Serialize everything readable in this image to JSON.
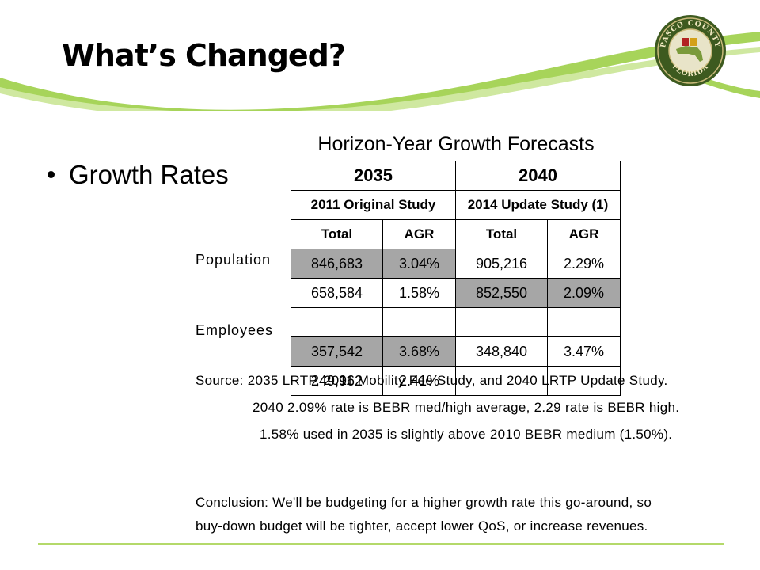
{
  "slide": {
    "title": "What’s Changed?",
    "bullet": "Growth Rates",
    "logo_text": "PASCO COUNTY FLORIDA",
    "accent_color": "#8dc63f"
  },
  "table": {
    "title": "Horizon-Year Growth Forecasts",
    "year_headers": [
      "2035",
      "2040"
    ],
    "study_headers": [
      "2011 Original Study",
      "2014 Update Study (1)"
    ],
    "column_headers": [
      "Total",
      "AGR",
      "Total",
      "AGR"
    ],
    "row_labels": [
      "Population",
      "Employees"
    ],
    "rows": [
      [
        "846,683",
        "3.04%",
        "905,216",
        "2.29%"
      ],
      [
        "658,584",
        "1.58%",
        "852,550",
        "2.09%"
      ],
      [
        "",
        "",
        "",
        ""
      ],
      [
        "357,542",
        "3.68%",
        "348,840",
        "3.47%"
      ],
      [
        "249,962",
        "2.41%",
        "",
        ""
      ]
    ]
  },
  "notes": {
    "source": "Source:  2035 LRTP, 2011 Mobility Fee Study, and 2040 LRTP Update Study.",
    "note1": "2040 2.09% rate is BEBR med/high average, 2.29 rate is BEBR high.",
    "note2": "1.58% used in 2035 is slightly above 2010 BEBR medium (1.50%).",
    "conclusion_line1": "Conclusion:  We'll be budgeting for a higher growth rate this go-around, so",
    "conclusion_line2": "buy-down budget will be tighter, accept lower QoS, or increase revenues."
  }
}
